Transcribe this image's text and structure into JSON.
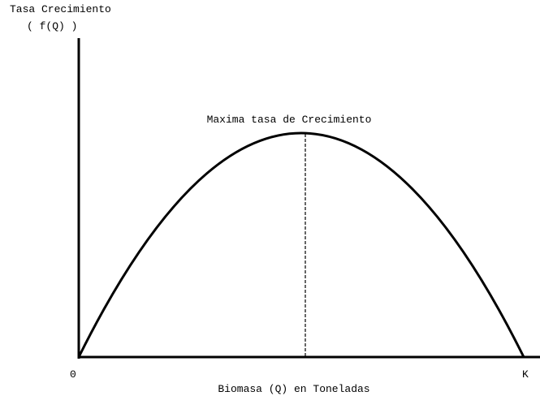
{
  "axis": {
    "y_label": "Tasa Crecimiento",
    "y_sublabel": "( f(Q) )",
    "x_label": "Biomasa (Q) en Toneladas",
    "x_origin": "0",
    "x_end": "K"
  },
  "annotation": "Maxima tasa de Crecimiento"
}
